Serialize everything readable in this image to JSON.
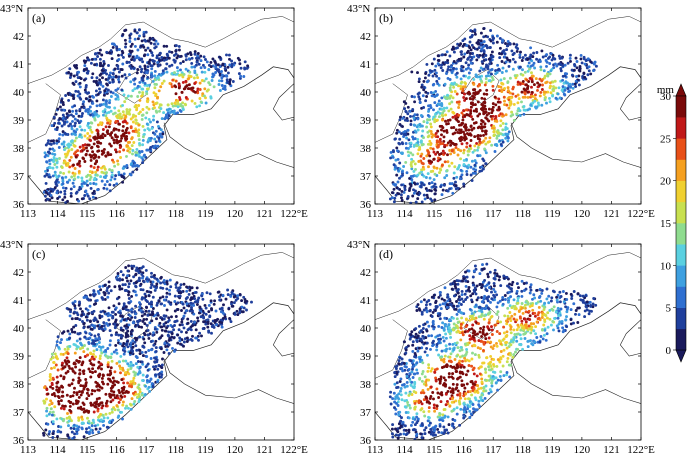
{
  "panels": [
    {
      "id": "a",
      "label": "(a)"
    },
    {
      "id": "b",
      "label": "(b)"
    },
    {
      "id": "c",
      "label": "(c)"
    },
    {
      "id": "d",
      "label": "(d)"
    }
  ],
  "axes": {
    "lon_ticks": [
      "113",
      "114",
      "115",
      "116",
      "117",
      "118",
      "119",
      "120",
      "121",
      "122°E"
    ],
    "lat_ticks": [
      "36",
      "37",
      "38",
      "39",
      "40",
      "41",
      "42",
      "43°N"
    ],
    "lon_range": [
      113,
      122
    ],
    "lat_range": [
      36,
      43
    ]
  },
  "colorbar": {
    "unit": "mm",
    "tick_labels": [
      "0",
      "5",
      "10",
      "15",
      "20",
      "25",
      "30"
    ],
    "range": [
      0,
      30
    ],
    "colors": [
      "#1a1a5c",
      "#1f3f9c",
      "#2f6fd0",
      "#3ea0e0",
      "#5ad0e0",
      "#8fdc8f",
      "#c8e050",
      "#f0d030",
      "#f5a020",
      "#e85018",
      "#c01818",
      "#7a0a0a"
    ]
  },
  "chart_data": [
    {
      "type": "scatter",
      "panel": "a",
      "xlim": [
        113,
        122
      ],
      "ylim": [
        36,
        43
      ],
      "clusters": [
        {
          "center": [
            118.3,
            40.1
          ],
          "value": 29
        },
        {
          "center": [
            116.0,
            38.6
          ],
          "value": 28
        },
        {
          "center": [
            115.5,
            37.9
          ],
          "value": 26
        },
        {
          "center": [
            114.8,
            37.4
          ],
          "value": 20
        },
        {
          "center": [
            116.8,
            39.6
          ],
          "value": 16
        }
      ]
    },
    {
      "type": "scatter",
      "panel": "b",
      "xlim": [
        113,
        122
      ],
      "ylim": [
        36,
        43
      ],
      "clusters": [
        {
          "center": [
            116.4,
            39.9
          ],
          "value": 28
        },
        {
          "center": [
            118.3,
            40.2
          ],
          "value": 27
        },
        {
          "center": [
            115.6,
            38.7
          ],
          "value": 24
        },
        {
          "center": [
            116.2,
            38.5
          ],
          "value": 26
        },
        {
          "center": [
            115.0,
            37.6
          ],
          "value": 25
        },
        {
          "center": [
            117.0,
            39.3
          ],
          "value": 18
        }
      ]
    },
    {
      "type": "scatter",
      "panel": "c",
      "xlim": [
        113,
        122
      ],
      "ylim": [
        36,
        43
      ],
      "clusters": [
        {
          "center": [
            114.2,
            37.8
          ],
          "value": 29
        },
        {
          "center": [
            114.8,
            37.2
          ],
          "value": 27
        },
        {
          "center": [
            115.6,
            38.4
          ],
          "value": 22
        },
        {
          "center": [
            116.0,
            37.7
          ],
          "value": 25
        },
        {
          "center": [
            114.5,
            38.8
          ],
          "value": 26
        }
      ]
    },
    {
      "type": "scatter",
      "panel": "d",
      "xlim": [
        113,
        122
      ],
      "ylim": [
        36,
        43
      ],
      "clusters": [
        {
          "center": [
            116.5,
            39.9
          ],
          "value": 29
        },
        {
          "center": [
            118.2,
            40.4
          ],
          "value": 24
        },
        {
          "center": [
            115.5,
            38.5
          ],
          "value": 24
        },
        {
          "center": [
            116.0,
            38.0
          ],
          "value": 22
        },
        {
          "center": [
            114.9,
            37.4
          ],
          "value": 25
        },
        {
          "center": [
            117.2,
            39.0
          ],
          "value": 16
        }
      ]
    }
  ]
}
